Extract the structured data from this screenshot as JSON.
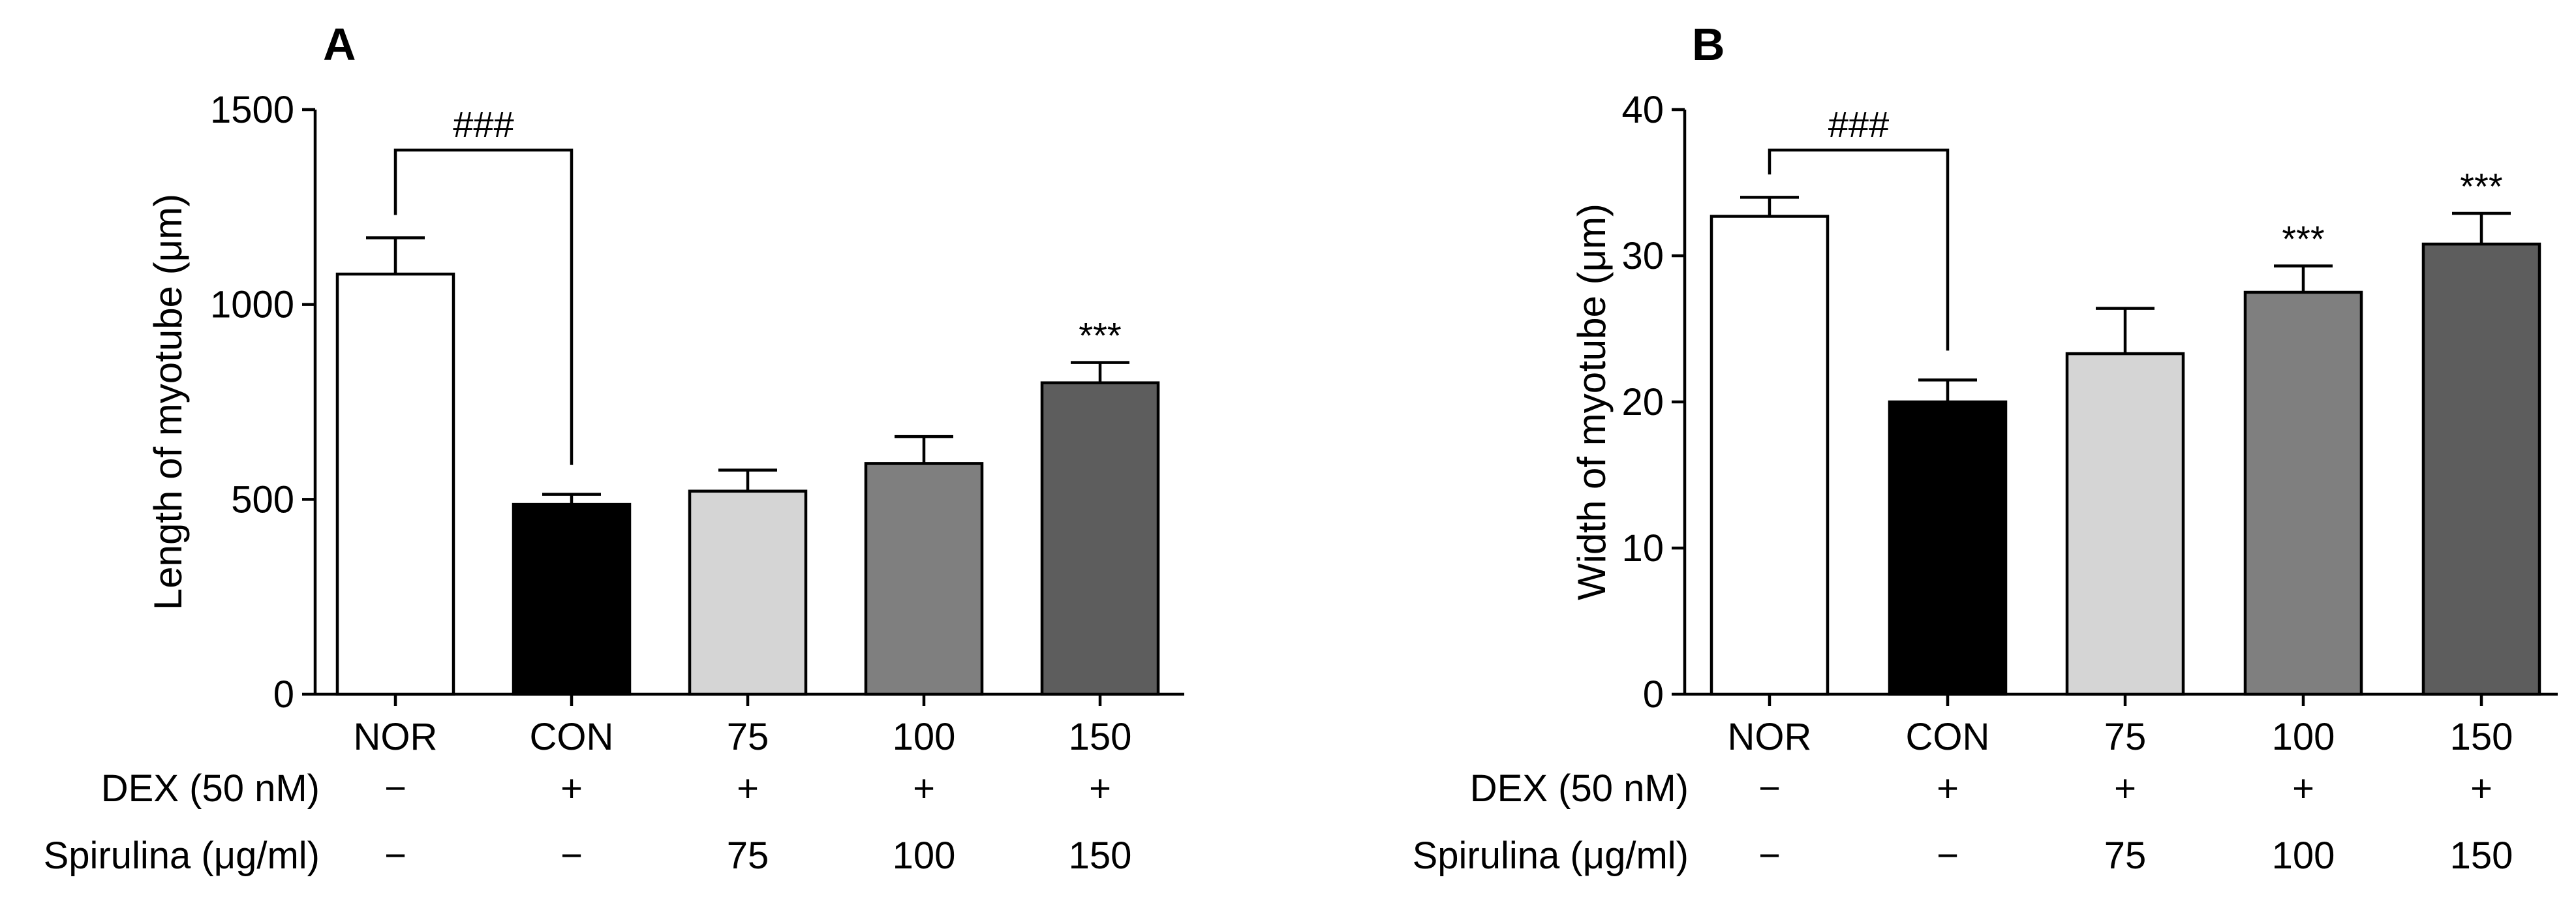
{
  "chart_data": [
    {
      "type": "bar",
      "panel_label": "A",
      "ylabel": "Length of myotube (μm)",
      "ylim": [
        0,
        1500
      ],
      "yticks": [
        0,
        500,
        1000,
        1500
      ],
      "categories": [
        "NOR",
        "CON",
        "75",
        "100",
        "150"
      ],
      "values": [
        1078,
        487,
        521,
        592,
        799
      ],
      "errors": [
        93,
        26,
        54,
        69,
        52
      ],
      "bar_colors": [
        "#ffffff",
        "#000000",
        "#d5d5d5",
        "#7f7f7f",
        "#5d5d5d"
      ],
      "significance": [
        "",
        "",
        "",
        "",
        "***"
      ],
      "bracket": {
        "label": "###",
        "from": "NOR",
        "to": "CON"
      },
      "conditions": [
        {
          "label": "DEX (50 nM)",
          "values": [
            "−",
            "+",
            "+",
            "+",
            "+"
          ]
        },
        {
          "label": "Spirulina (μg/ml)",
          "values": [
            "−",
            "−",
            "75",
            "100",
            "150"
          ]
        }
      ]
    },
    {
      "type": "bar",
      "panel_label": "B",
      "ylabel": "Width of myotube (μm)",
      "ylim": [
        0,
        40
      ],
      "yticks": [
        0,
        10,
        20,
        30,
        40
      ],
      "categories": [
        "NOR",
        "CON",
        "75",
        "100",
        "150"
      ],
      "values": [
        32.7,
        20.0,
        23.3,
        27.5,
        30.8
      ],
      "errors": [
        1.3,
        1.5,
        3.1,
        1.8,
        2.1
      ],
      "bar_colors": [
        "#ffffff",
        "#000000",
        "#d5d5d5",
        "#7f7f7f",
        "#5d5d5d"
      ],
      "significance": [
        "",
        "",
        "",
        "***",
        "***"
      ],
      "bracket": {
        "label": "###",
        "from": "NOR",
        "to": "CON"
      },
      "conditions": [
        {
          "label": "DEX (50 nM)",
          "values": [
            "−",
            "+",
            "+",
            "+",
            "+"
          ]
        },
        {
          "label": "Spirulina (μg/ml)",
          "values": [
            "−",
            "−",
            "75",
            "100",
            "150"
          ]
        }
      ]
    }
  ]
}
